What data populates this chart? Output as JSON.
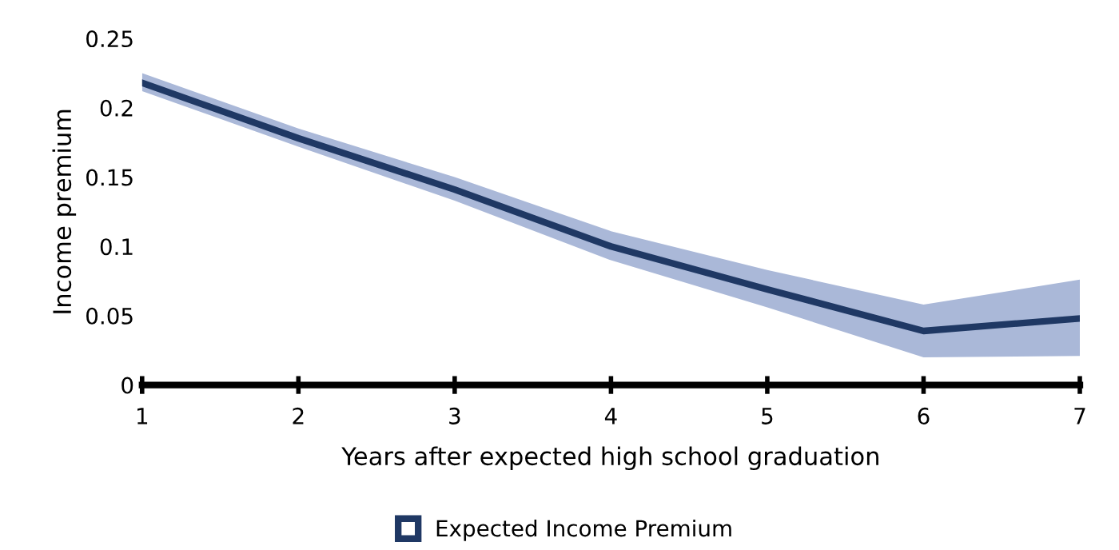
{
  "chart_data": {
    "type": "line",
    "xlabel": "Years after expected high school graduation",
    "ylabel": "Income premium",
    "x": [
      1,
      2,
      3,
      4,
      5,
      6,
      7
    ],
    "series": [
      {
        "name": "Expected Income Premium",
        "color": "#1f3864",
        "values": [
          0.218,
          0.178,
          0.141,
          0.1,
          0.069,
          0.039,
          0.048
        ],
        "lower": [
          0.212,
          0.172,
          0.133,
          0.09,
          0.056,
          0.02,
          0.021
        ],
        "upper": [
          0.225,
          0.185,
          0.15,
          0.111,
          0.083,
          0.058,
          0.076
        ]
      }
    ],
    "xlim": [
      1,
      7
    ],
    "xticks": [
      1,
      2,
      3,
      4,
      5,
      6,
      7
    ],
    "ylim": [
      0,
      0.25
    ],
    "yticks": [
      0,
      0.05,
      0.1,
      0.15,
      0.2,
      0.25
    ],
    "grid": false,
    "legend": "bottom",
    "marker": "none",
    "line_style": "solid"
  }
}
